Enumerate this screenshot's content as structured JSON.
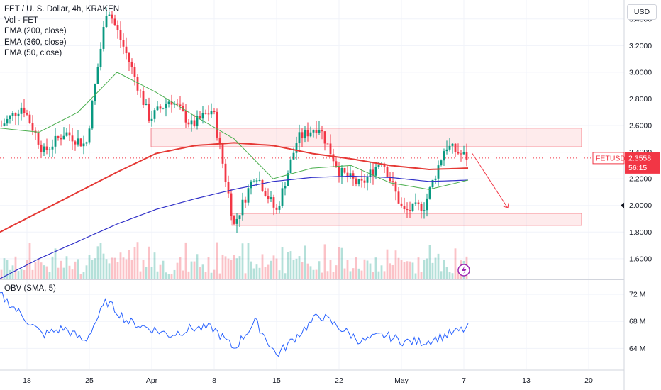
{
  "header": {
    "symbol": "FET / U. S. Dollar, 4h, KRAKEN",
    "indicators": [
      "Vol · FET",
      "EMA (200, close)",
      "EMA (360, close)",
      "EMA (50, close)"
    ],
    "currency_button": "USD",
    "obv_label": "OBV (SMA, 5)"
  },
  "price_axis": {
    "labels": [
      "3.4000",
      "3.2000",
      "3.0000",
      "2.8000",
      "2.6000",
      "2.4000",
      "2.2000",
      "2.0000",
      "1.8000",
      "1.6000"
    ],
    "values": [
      3.4,
      3.2,
      3.0,
      2.8,
      2.6,
      2.4,
      2.2,
      2.0,
      1.8,
      1.6
    ],
    "range": [
      1.45,
      3.5
    ],
    "highlight_label": "2.0000"
  },
  "obv_axis": {
    "labels": [
      "72 M",
      "68 M",
      "64 M"
    ],
    "values": [
      72,
      68,
      64
    ],
    "range": [
      61,
      74
    ]
  },
  "time_axis": {
    "labels": [
      "18",
      "25",
      "Apr",
      "8",
      "15",
      "22",
      "May",
      "7",
      "13",
      "20"
    ]
  },
  "last_price": {
    "symbol": "FETUSD",
    "price": "2.3558",
    "countdown": "56:15",
    "value": 2.3558
  },
  "colors": {
    "up": "#089981",
    "down": "#f23645",
    "ema200": "#e53935",
    "ema360": "#3030c8",
    "ema50": "#4caf50",
    "obv": "#2962ff",
    "zone": "#f23645",
    "alert_icon": "#9c27b0"
  },
  "chart_data": {
    "type": "line",
    "title": "FET / U. S. Dollar, 4h, KRAKEN",
    "xlabel": "",
    "ylabel": "",
    "x_ticks": [
      "18",
      "25",
      "Apr",
      "8",
      "15",
      "22",
      "May",
      "7",
      "13",
      "20"
    ],
    "ylim": [
      1.45,
      3.5
    ],
    "grid": true,
    "series": [
      {
        "name": "EMA (200, close)",
        "values": [
          1.8,
          1.95,
          2.1,
          2.25,
          2.39,
          2.45,
          2.47,
          2.45,
          2.39,
          2.35,
          2.3,
          2.27,
          2.28
        ]
      },
      {
        "name": "EMA (360, close)",
        "values": [
          1.45,
          1.6,
          1.73,
          1.86,
          1.97,
          2.05,
          2.12,
          2.18,
          2.21,
          2.22,
          2.21,
          2.18,
          2.19
        ]
      },
      {
        "name": "EMA (50, close)",
        "values": [
          2.58,
          2.55,
          2.7,
          3.0,
          2.85,
          2.67,
          2.5,
          2.2,
          2.28,
          2.3,
          2.17,
          2.12,
          2.19
        ]
      }
    ],
    "price_path": [
      2.6,
      2.75,
      2.4,
      2.55,
      2.45,
      3.5,
      3.1,
      2.65,
      2.8,
      2.6,
      2.72,
      1.85,
      2.25,
      1.95,
      2.5,
      2.6,
      2.25,
      2.15,
      2.35,
      1.95,
      2.0,
      2.45,
      2.36
    ],
    "zones": [
      {
        "low": 2.44,
        "high": 2.58,
        "start_index": 6,
        "end_index": 33
      },
      {
        "low": 1.85,
        "high": 1.94,
        "start_index": 10,
        "end_index": 33
      }
    ],
    "forecast_arrow": {
      "from": 2.39,
      "to": 1.98
    },
    "obv_values": [
      72,
      69,
      66,
      67,
      65,
      71,
      68,
      67,
      66,
      67,
      67,
      64,
      68,
      63,
      66,
      69,
      67,
      65,
      66,
      65,
      65,
      66,
      67
    ]
  }
}
